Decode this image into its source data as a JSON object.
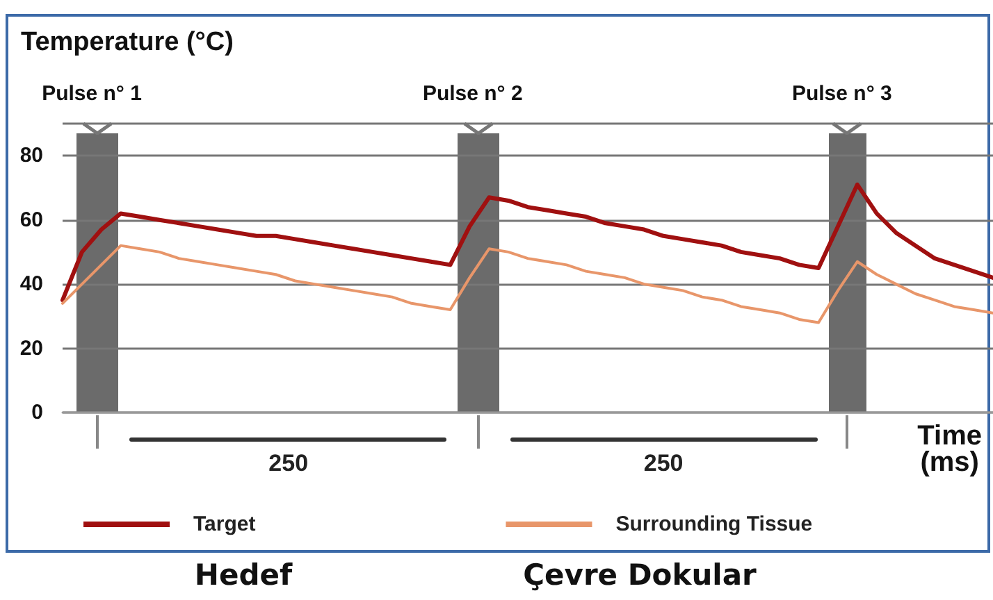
{
  "chart_data": {
    "type": "line",
    "ylabel": "Temperature (°C)",
    "xlabel": "Time\n(ms)",
    "categories": [
      null,
      null,
      null,
      null,
      null,
      null,
      null,
      null,
      null,
      null,
      null,
      null,
      null,
      null,
      null,
      null,
      null,
      null,
      null,
      null,
      null,
      null,
      null,
      null,
      null,
      null,
      null,
      null,
      null,
      null,
      null,
      null,
      null,
      null,
      null,
      null,
      null,
      null,
      null,
      null,
      null,
      null,
      null,
      null,
      null,
      null,
      null,
      null,
      null
    ],
    "ylim": [
      0,
      90
    ],
    "yticks": [
      0,
      20,
      40,
      60,
      80
    ],
    "tick_labels": "y",
    "grid": "y",
    "legend": "bottom",
    "marker": "none",
    "line_style": "solid",
    "annotations": [
      "Pulse n° 1",
      "Pulse n° 2",
      "Pulse n° 3",
      "250",
      "250",
      "Hedef",
      "Çevre Dokular"
    ],
    "series": [
      {
        "name": "Target",
        "color": "#a01010",
        "values": [
          35,
          50,
          57,
          62,
          61,
          60,
          59,
          58,
          57,
          56,
          55,
          55,
          54,
          53,
          52,
          51,
          50,
          49,
          48,
          47,
          46,
          58,
          67,
          66,
          64,
          63,
          62,
          61,
          59,
          58,
          57,
          55,
          54,
          53,
          52,
          50,
          49,
          48,
          46,
          45,
          58,
          71,
          62,
          56,
          52,
          48,
          46,
          44,
          42
        ]
      },
      {
        "name": "Surrounding Tissue",
        "color": "#e8966a",
        "values": [
          34,
          40,
          46,
          52,
          51,
          50,
          48,
          47,
          46,
          45,
          44,
          43,
          41,
          40,
          39,
          38,
          37,
          36,
          34,
          33,
          32,
          42,
          51,
          50,
          48,
          47,
          46,
          44,
          43,
          42,
          40,
          39,
          38,
          36,
          35,
          33,
          32,
          31,
          29,
          28,
          38,
          47,
          43,
          40,
          37,
          35,
          33,
          32,
          31
        ]
      }
    ]
  }
}
